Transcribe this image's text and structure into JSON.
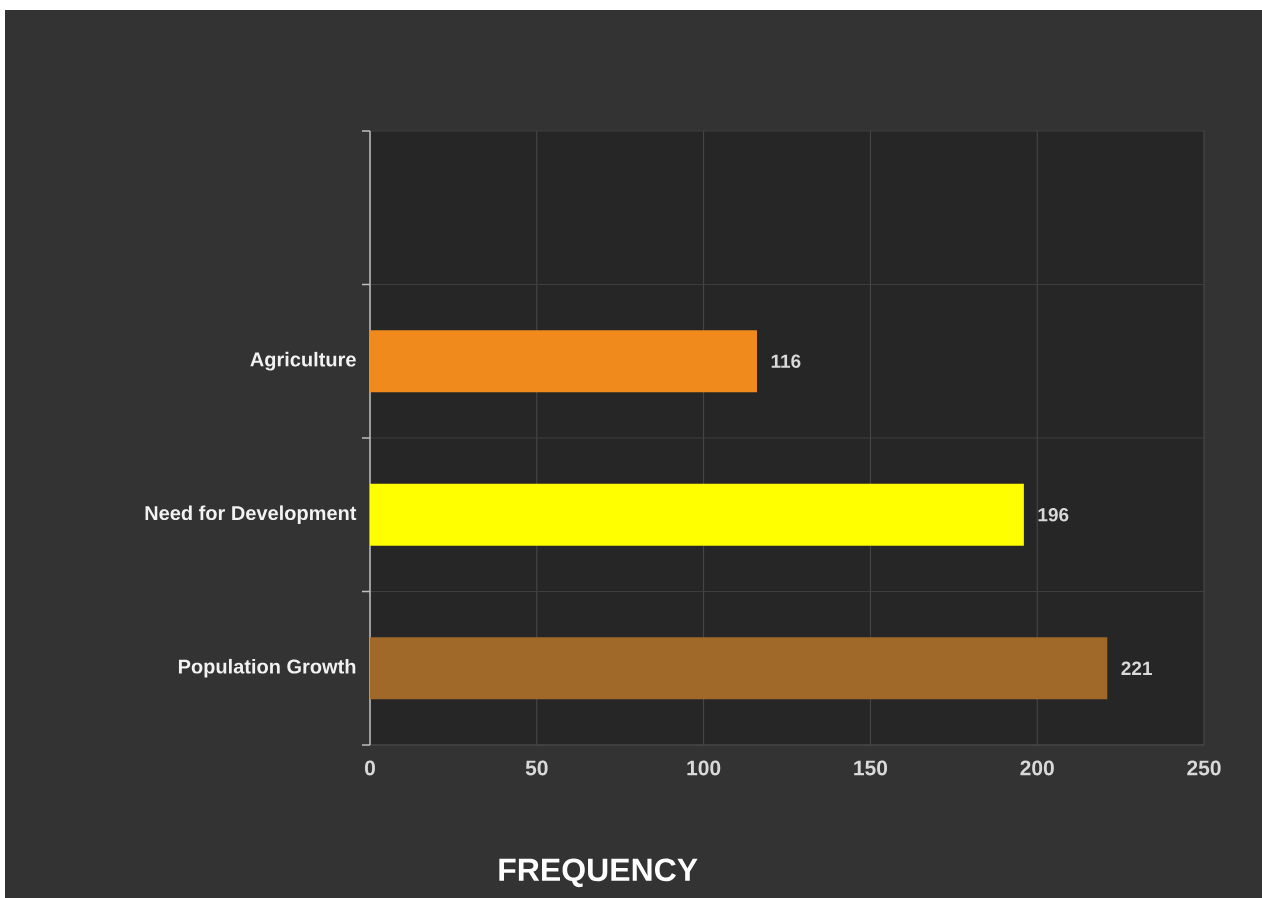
{
  "chart_data": {
    "type": "bar",
    "orientation": "horizontal",
    "xlabel": "FREQUENCY",
    "categories": [
      null,
      "Agriculture",
      "Need for Development",
      "Population Growth"
    ],
    "values": [
      null,
      116,
      196,
      221
    ],
    "colors": [
      null,
      "#f08a1c",
      "#ffff00",
      "#a0692a"
    ],
    "xlim": [
      0,
      250
    ],
    "xticks": [
      0,
      50,
      100,
      150,
      200,
      250
    ],
    "grid": true,
    "data_labels": true
  }
}
